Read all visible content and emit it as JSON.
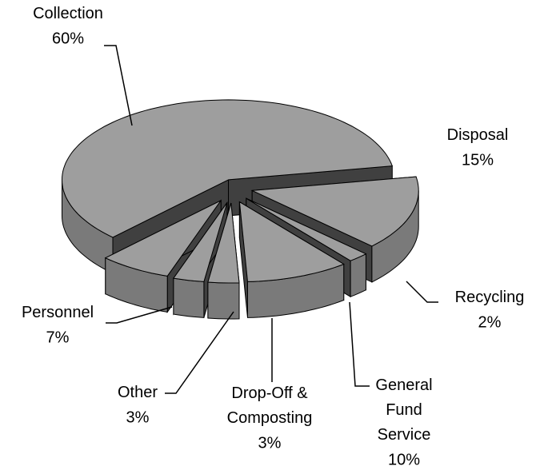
{
  "chart_data": {
    "type": "pie3d",
    "categories": [
      "Collection",
      "Disposal",
      "Recycling",
      "General Fund Service",
      "Drop-Off & Composting",
      "Other",
      "Personnel"
    ],
    "values": [
      60,
      15,
      2,
      10,
      3,
      3,
      7
    ],
    "value_labels": [
      "60%",
      "15%",
      "2%",
      "10%",
      "3%",
      "3%",
      "7%"
    ],
    "color": "#9e9e9e"
  }
}
